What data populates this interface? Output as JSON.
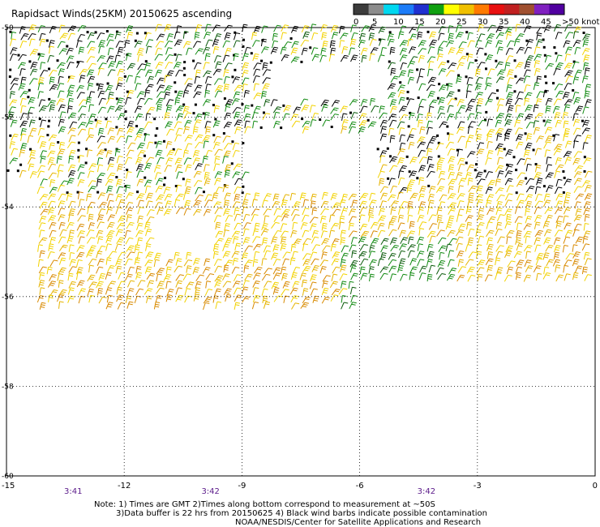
{
  "title": "Rapidsact Winds(25KM) 20150625 ascending",
  "legend": {
    "labels": [
      "0",
      "5",
      "10",
      "15",
      "20",
      "25",
      "30",
      "35",
      "40",
      "45",
      ">50 knots"
    ],
    "colors": [
      "#3c3c3c",
      "#8c8c8c",
      "#00d8f0",
      "#1c7cf8",
      "#2030d0",
      "#10a010",
      "#ffff00",
      "#f0c000",
      "#ff7a00",
      "#e81010",
      "#c02020",
      "#a05030",
      "#8020c0",
      "#5000a0"
    ]
  },
  "axes": {
    "lat_labels": [
      "-50",
      "-52",
      "-54",
      "-56",
      "-58",
      "-60"
    ],
    "lat_values": [
      -50,
      -52,
      -54,
      -56,
      -58,
      -60
    ],
    "lon_labels": [
      "-15",
      "-12",
      "-9",
      "-6",
      "-3",
      "0"
    ],
    "lon_values": [
      -15,
      -12,
      -9,
      -6,
      -3,
      0
    ]
  },
  "times": [
    {
      "label": "3:41",
      "lon": -13.3
    },
    {
      "label": "3:42",
      "lon": -9.8
    },
    {
      "label": "3:42",
      "lon": -4.3
    }
  ],
  "notes": {
    "line1": "Note: 1) Times are GMT 2)Times along bottom correspond to measurement at ~50S",
    "line2": "3)Data buffer is 22 hrs from 20150625 4) Black wind barbs indicate possible contamination",
    "line3": "NOAA/NESDIS/Center for Satellite Applications and Research"
  },
  "colors": {
    "contaminated": "#000000",
    "green": "#118a11",
    "darkgreen": "#0a5a0a",
    "yellow": "#f2d200",
    "gold": "#e6b400",
    "orange": "#d88a00",
    "time_label": "#5a1a8a"
  }
}
